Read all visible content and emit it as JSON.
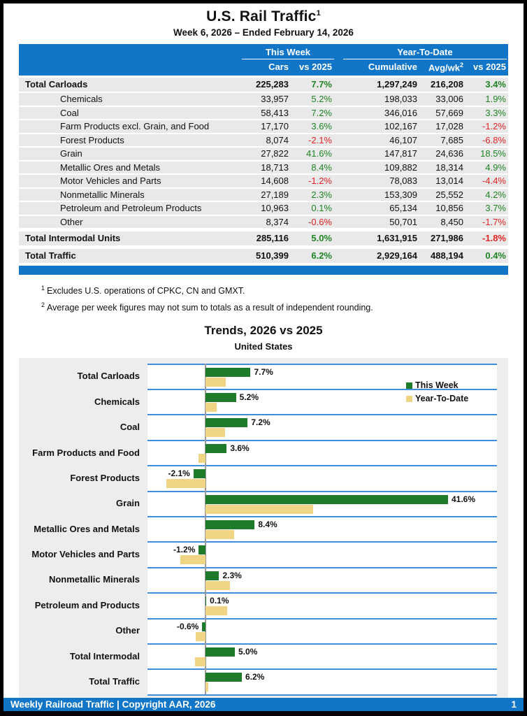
{
  "page": {
    "title": "U.S. Rail Traffic",
    "title_sup": "1",
    "subtitle": "Week 6, 2026 – Ended February 14, 2026"
  },
  "table": {
    "group_headers": {
      "this_week": "This Week",
      "year_to_date": "Year-To-Date"
    },
    "columns": {
      "cars": "Cars",
      "vs2025": "vs 2025",
      "cumulative": "Cumulative",
      "avgwk": "Avg/wk",
      "avgwk_sup": "2",
      "ytd_vs2025": "vs 2025"
    },
    "rows": [
      {
        "label": "Total Carloads",
        "style": "total",
        "cars": "225,283",
        "vs": "7.7%",
        "cumulative": "1,297,249",
        "avgwk": "216,208",
        "ytd_vs": "3.4%"
      },
      {
        "label": "Chemicals",
        "style": "sub",
        "cars": "33,957",
        "vs": "5.2%",
        "cumulative": "198,033",
        "avgwk": "33,006",
        "ytd_vs": "1.9%"
      },
      {
        "label": "Coal",
        "style": "sub",
        "cars": "58,413",
        "vs": "7.2%",
        "cumulative": "346,016",
        "avgwk": "57,669",
        "ytd_vs": "3.3%"
      },
      {
        "label": "Farm Products excl. Grain, and Food",
        "style": "sub",
        "cars": "17,170",
        "vs": "3.6%",
        "cumulative": "102,167",
        "avgwk": "17,028",
        "ytd_vs": "-1.2%"
      },
      {
        "label": "Forest Products",
        "style": "sub",
        "cars": "8,074",
        "vs": "-2.1%",
        "cumulative": "46,107",
        "avgwk": "7,685",
        "ytd_vs": "-6.8%"
      },
      {
        "label": "Grain",
        "style": "sub",
        "cars": "27,822",
        "vs": "41.6%",
        "cumulative": "147,817",
        "avgwk": "24,636",
        "ytd_vs": "18.5%"
      },
      {
        "label": "Metallic Ores and Metals",
        "style": "sub",
        "cars": "18,713",
        "vs": "8.4%",
        "cumulative": "109,882",
        "avgwk": "18,314",
        "ytd_vs": "4.9%"
      },
      {
        "label": "Motor Vehicles and Parts",
        "style": "sub",
        "cars": "14,608",
        "vs": "-1.2%",
        "cumulative": "78,083",
        "avgwk": "13,014",
        "ytd_vs": "-4.4%"
      },
      {
        "label": "Nonmetallic Minerals",
        "style": "sub",
        "cars": "27,189",
        "vs": "2.3%",
        "cumulative": "153,309",
        "avgwk": "25,552",
        "ytd_vs": "4.2%"
      },
      {
        "label": "Petroleum and Petroleum Products",
        "style": "sub",
        "cars": "10,963",
        "vs": "0.1%",
        "cumulative": "65,134",
        "avgwk": "10,856",
        "ytd_vs": "3.7%"
      },
      {
        "label": "Other",
        "style": "sub",
        "cars": "8,374",
        "vs": "-0.6%",
        "cumulative": "50,701",
        "avgwk": "8,450",
        "ytd_vs": "-1.7%"
      },
      {
        "label": "Total Intermodal Units",
        "style": "total",
        "cars": "285,116",
        "vs": "5.0%",
        "cumulative": "1,631,915",
        "avgwk": "271,986",
        "ytd_vs": "-1.8%"
      },
      {
        "label": "Total Traffic",
        "style": "total",
        "cars": "510,399",
        "vs": "6.2%",
        "cumulative": "2,929,164",
        "avgwk": "488,194",
        "ytd_vs": "0.4%"
      }
    ]
  },
  "footnotes": [
    {
      "sup": "1",
      "text": "Excludes U.S. operations of CPKC, CN and GMXT."
    },
    {
      "sup": "2",
      "text": "Average per week figures may not sum to totals as a result of independent rounding."
    }
  ],
  "chart_data": {
    "type": "bar",
    "orientation": "horizontal",
    "title": "Trends, 2026 vs 2025",
    "subtitle": "United States",
    "categories": [
      "Total Carloads",
      "Chemicals",
      "Coal",
      "Farm Products and Food",
      "Forest Products",
      "Grain",
      "Metallic Ores and Metals",
      "Motor Vehicles and Parts",
      "Nonmetallic Minerals",
      "Petroleum and Products",
      "Other",
      "Total Intermodal",
      "Total Traffic"
    ],
    "series": [
      {
        "name": "This Week",
        "color": "#1d7b2a",
        "values": [
          7.7,
          5.2,
          7.2,
          3.6,
          -2.1,
          41.6,
          8.4,
          -1.2,
          2.3,
          0.1,
          -0.6,
          5.0,
          6.2
        ]
      },
      {
        "name": "Year-To-Date",
        "color": "#efd584",
        "values": [
          3.4,
          1.9,
          3.3,
          -1.2,
          -6.8,
          18.5,
          4.9,
          -4.4,
          4.2,
          3.7,
          -1.7,
          -1.8,
          0.4
        ]
      }
    ],
    "bar_labels": [
      "7.7%",
      "5.2%",
      "7.2%",
      "3.6%",
      "-2.1%",
      "41.6%",
      "8.4%",
      "-1.2%",
      "2.3%",
      "0.1%",
      "-0.6%",
      "5.0%",
      "6.2%"
    ],
    "xlim": [
      -10,
      50
    ],
    "xticks": [
      {
        "value": -10,
        "label": "-10%"
      },
      {
        "value": 10,
        "label": "10%"
      },
      {
        "value": 30,
        "label": "30%"
      },
      {
        "value": 50,
        "label": "50%"
      }
    ],
    "legend_position": "inside-top-right",
    "grid": "category-separators"
  },
  "footer": {
    "left": "Weekly Railroad Traffic | Copyright AAR, 2026",
    "page": "1"
  },
  "colors": {
    "band_blue": "#1176c8",
    "grid_blue": "#3f8ede",
    "bar_green": "#1d7b2a",
    "bar_tan": "#efd584",
    "positive_green": "#1e8424",
    "negative_red": "#e02424",
    "row_gray": "#e9e9e9",
    "panel_gray": "#ededed"
  }
}
